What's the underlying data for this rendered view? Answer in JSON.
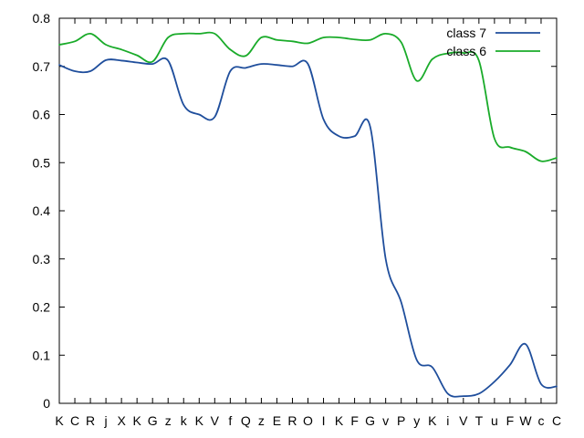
{
  "chart_data": {
    "type": "line",
    "categories": [
      "K",
      "C",
      "R",
      "j",
      "X",
      "K",
      "G",
      "z",
      "k",
      "K",
      "V",
      "f",
      "Q",
      "z",
      "E",
      "R",
      "O",
      "I",
      "K",
      "F",
      "G",
      "v",
      "P",
      "y",
      "K",
      "i",
      "V",
      "T",
      "u",
      "F",
      "W",
      "c",
      "C"
    ],
    "ylim": [
      0,
      0.8
    ],
    "yticks": [
      0,
      0.1,
      0.2,
      0.3,
      0.4,
      0.5,
      0.6,
      0.7,
      0.8
    ],
    "ytick_labels": [
      "0",
      "0.1",
      "0.2",
      "0.3",
      "0.4",
      "0.5",
      "0.6",
      "0.7",
      "0.8"
    ],
    "grid": false,
    "legend_position": "top-right",
    "series": [
      {
        "name": "class 7",
        "color": "#1f4e9c",
        "values": [
          0.703,
          0.69,
          0.69,
          0.713,
          0.712,
          0.708,
          0.705,
          0.712,
          0.62,
          0.6,
          0.595,
          0.69,
          0.697,
          0.705,
          0.703,
          0.7,
          0.705,
          0.59,
          0.555,
          0.555,
          0.575,
          0.3,
          0.21,
          0.09,
          0.075,
          0.02,
          0.015,
          0.02,
          0.045,
          0.08,
          0.123,
          0.04,
          0.035
        ]
      },
      {
        "name": "class 6",
        "color": "#1aab2a",
        "values": [
          0.745,
          0.752,
          0.768,
          0.745,
          0.735,
          0.723,
          0.71,
          0.76,
          0.768,
          0.768,
          0.768,
          0.735,
          0.722,
          0.76,
          0.755,
          0.752,
          0.748,
          0.76,
          0.76,
          0.756,
          0.755,
          0.768,
          0.75,
          0.67,
          0.715,
          0.727,
          0.728,
          0.712,
          0.55,
          0.532,
          0.523,
          0.503,
          0.51
        ]
      }
    ]
  }
}
